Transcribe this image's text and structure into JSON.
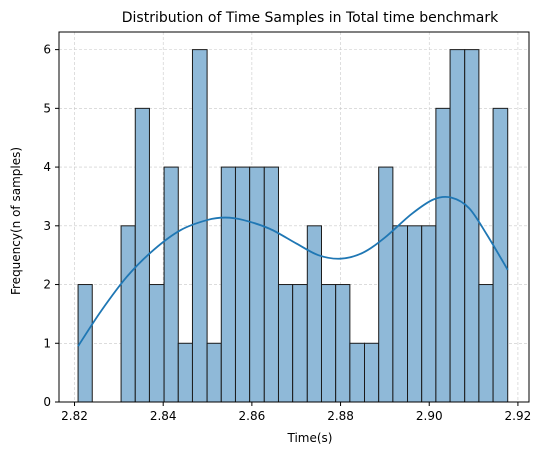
{
  "chart_data": {
    "type": "bar",
    "title": "Distribution of Time Samples in Total time benchmark",
    "xlabel": "Time(s)",
    "ylabel": "Frequency(n of samples)",
    "xlim": [
      2.8165,
      2.9225
    ],
    "ylim": [
      0,
      6.3
    ],
    "grid": true,
    "bin_edges": [
      2.8208,
      2.824,
      2.8273,
      2.8305,
      2.8337,
      2.8369,
      2.8402,
      2.8434,
      2.8466,
      2.8499,
      2.8531,
      2.8563,
      2.8595,
      2.8628,
      2.866,
      2.8692,
      2.8725,
      2.8757,
      2.8789,
      2.8821,
      2.8854,
      2.8886,
      2.8918,
      2.8951,
      2.8983,
      2.9015,
      2.9047,
      2.908,
      2.9112,
      2.9144,
      2.9177
    ],
    "counts": [
      2,
      0,
      0,
      3,
      5,
      2,
      4,
      1,
      6,
      1,
      4,
      4,
      4,
      4,
      2,
      2,
      3,
      2,
      2,
      1,
      1,
      4,
      3,
      3,
      3,
      5,
      6,
      6,
      2,
      5
    ],
    "kde": {
      "x": [
        2.8208,
        2.826,
        2.832,
        2.838,
        2.844,
        2.85,
        2.854,
        2.858,
        2.864,
        2.87,
        2.875,
        2.88,
        2.885,
        2.89,
        2.896,
        2.901,
        2.905,
        2.909,
        2.913,
        2.9177
      ],
      "y": [
        0.95,
        1.55,
        2.15,
        2.6,
        2.93,
        3.1,
        3.14,
        3.1,
        2.95,
        2.7,
        2.5,
        2.44,
        2.54,
        2.8,
        3.2,
        3.45,
        3.48,
        3.3,
        2.85,
        2.25
      ]
    },
    "xticks": [
      {
        "value": 2.82,
        "label": "2.82"
      },
      {
        "value": 2.84,
        "label": "2.84"
      },
      {
        "value": 2.86,
        "label": "2.86"
      },
      {
        "value": 2.88,
        "label": "2.88"
      },
      {
        "value": 2.9,
        "label": "2.90"
      },
      {
        "value": 2.92,
        "label": "2.92"
      }
    ],
    "yticks": [
      {
        "value": 0,
        "label": "0"
      },
      {
        "value": 1,
        "label": "1"
      },
      {
        "value": 2,
        "label": "2"
      },
      {
        "value": 3,
        "label": "3"
      },
      {
        "value": 4,
        "label": "4"
      },
      {
        "value": 5,
        "label": "5"
      },
      {
        "value": 6,
        "label": "6"
      }
    ],
    "colors": {
      "bar_fill": "#8fb9d8",
      "bar_edge": "#1a1a1a",
      "kde_line": "#1f77b4",
      "grid": "#c8c8c8"
    }
  }
}
